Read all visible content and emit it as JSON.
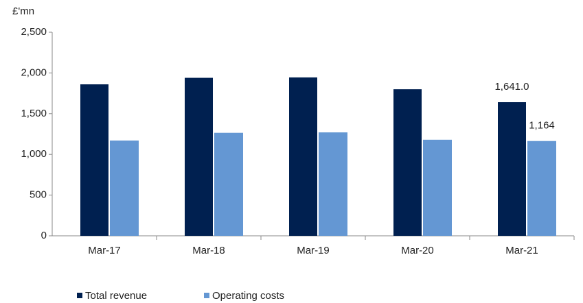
{
  "chart_data": {
    "type": "bar",
    "y_axis_label": "£'mn",
    "categories": [
      "Mar-17",
      "Mar-18",
      "Mar-19",
      "Mar-20",
      "Mar-21"
    ],
    "series": [
      {
        "name": "Total revenue",
        "color": "#002050",
        "values": [
          1860,
          1940,
          1945,
          1800,
          1641
        ],
        "value_labels": [
          null,
          null,
          null,
          null,
          "1,641.0"
        ]
      },
      {
        "name": "Operating costs",
        "color": "#6497d3",
        "values": [
          1170,
          1265,
          1270,
          1180,
          1164
        ],
        "value_labels": [
          null,
          null,
          null,
          null,
          "1,164"
        ]
      }
    ],
    "ylim": [
      0,
      2500
    ],
    "yticks": [
      0,
      500,
      {
        "value": 1000,
        "label": "1,000"
      },
      {
        "value": 1500,
        "label": "1,500"
      },
      {
        "value": 2000,
        "label": "2,000"
      },
      {
        "value": 2500,
        "label": "2,500"
      }
    ],
    "grid": false,
    "legend": "bottom"
  }
}
